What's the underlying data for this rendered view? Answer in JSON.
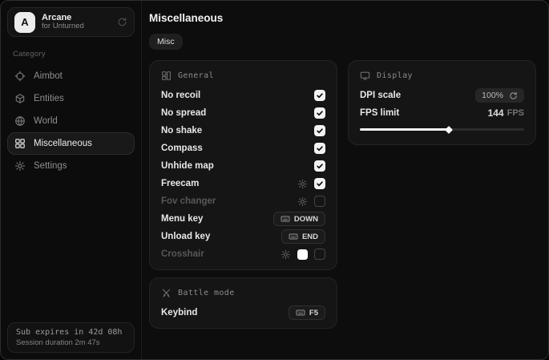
{
  "brand": {
    "name": "Arcane",
    "subtitle": "for Unturned",
    "avatar_letter": "A"
  },
  "sidebar": {
    "category_label": "Category",
    "items": [
      {
        "label": "Aimbot",
        "icon": "crosshair-icon",
        "selected": false
      },
      {
        "label": "Entities",
        "icon": "cube-icon",
        "selected": false
      },
      {
        "label": "World",
        "icon": "globe-icon",
        "selected": false
      },
      {
        "label": "Miscellaneous",
        "icon": "grid-icon",
        "selected": true
      },
      {
        "label": "Settings",
        "icon": "gear-icon",
        "selected": false
      }
    ],
    "status": {
      "line1": "Sub expires in 42d 08h",
      "line2": "Session duration 2m 47s"
    }
  },
  "main": {
    "title": "Miscellaneous",
    "tab_label": "Misc",
    "general": {
      "header": "General",
      "rows": [
        {
          "label": "No recoil",
          "checked": true
        },
        {
          "label": "No spread",
          "checked": true
        },
        {
          "label": "No shake",
          "checked": true
        },
        {
          "label": "Compass",
          "checked": true
        },
        {
          "label": "Unhide map",
          "checked": true
        },
        {
          "label": "Freecam",
          "checked": true,
          "has_settings": true
        },
        {
          "label": "Fov changer",
          "checked": false,
          "has_settings": true,
          "disabled": true
        },
        {
          "label": "Menu key",
          "key": "DOWN"
        },
        {
          "label": "Unload key",
          "key": "END"
        },
        {
          "label": "Crosshair",
          "checked": false,
          "has_settings": true,
          "has_color_swatch": true,
          "swatch_color": "#ffffff",
          "disabled": true
        }
      ]
    },
    "battle": {
      "header": "Battle mode",
      "keybind_label": "Keybind",
      "keybind_value": "F5"
    },
    "display": {
      "header": "Display",
      "dpi_label": "DPI scale",
      "dpi_value": "100%",
      "fps_label": "FPS limit",
      "fps_value": "144",
      "fps_unit": "FPS",
      "fps_slider_percent": 54
    }
  },
  "colors": {
    "window_bg": "#0d0d0d",
    "card_bg": "#151515",
    "card_border": "#242424",
    "accent": "#ffffff",
    "text_primary": "#e8e8e8",
    "text_muted": "#585858"
  }
}
